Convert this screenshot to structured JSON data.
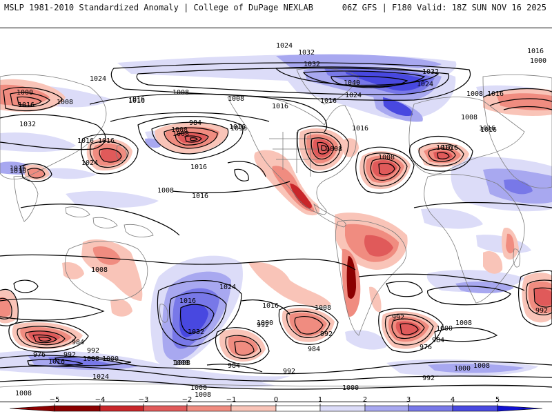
{
  "header": {
    "title_left": "MSLP 1981-2010 Standardized Anomaly | College of DuPage NEXLAB",
    "title_right": "06Z GFS | F180 Valid: 18Z SUN NOV 16 2025"
  },
  "colors": {
    "neg5": "#8b0000",
    "neg4": "#c8262a",
    "neg3": "#e05a5a",
    "neg2": "#f08c80",
    "neg1": "#f9c4b8",
    "zero": "#ffffff",
    "pos1": "#dcdcf8",
    "pos2": "#a8a8f0",
    "pos3": "#7878e8",
    "pos4": "#4848e0",
    "pos5": "#1010d0",
    "land_line": "#7a7a7a",
    "contour": "#000000"
  },
  "colorbar": {
    "ticks": [
      "−5",
      "−4",
      "−3",
      "−2",
      "−1",
      "0",
      "1",
      "2",
      "3",
      "4",
      "5"
    ]
  },
  "isobar_labels": [
    "1024",
    "1032",
    "1032",
    "1040",
    "1024",
    "1032",
    "1024",
    "1016",
    "1000",
    "1016",
    "1008",
    "1024",
    "1000",
    "1008",
    "1016",
    "1008",
    "1016",
    "1008",
    "1016",
    "1016",
    "1008",
    "984",
    "1016",
    "1016",
    "1032",
    "1016",
    "1024",
    "1016",
    "1016",
    "1008",
    "1016",
    "1016",
    "1016",
    "1008",
    "1008",
    "1016",
    "1016",
    "1008",
    "1016",
    "1016",
    "1016",
    "1008",
    "1016",
    "1024",
    "1016",
    "992",
    "1000",
    "992",
    "1008",
    "1016",
    "1032",
    "1008",
    "992",
    "1000",
    "984",
    "976",
    "984",
    "1008",
    "1000",
    "976",
    "992",
    "1016",
    "1008",
    "984",
    "992",
    "1024",
    "1008",
    "984",
    "992",
    "992",
    "992",
    "1000",
    "1008",
    "1000",
    "1000",
    "1008",
    "1008",
    "1008"
  ]
}
